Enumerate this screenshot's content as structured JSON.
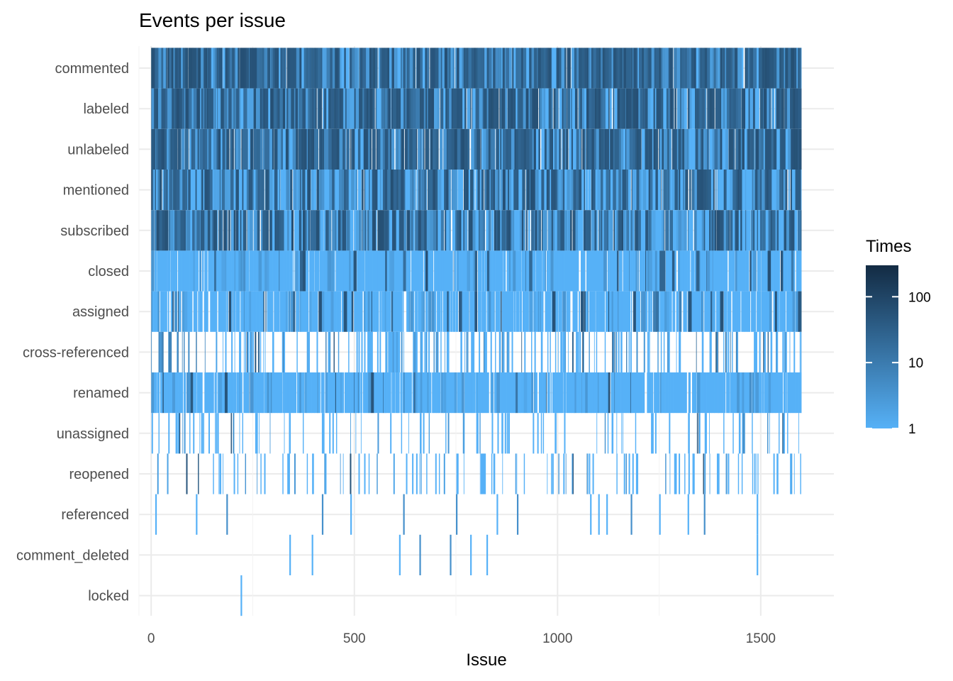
{
  "chart_data": {
    "type": "heatmap",
    "title": "Events per issue",
    "xlabel": "Issue",
    "ylabel": "",
    "xlim": [
      -30,
      1680
    ],
    "x_ticks": [
      0,
      500,
      1000,
      1500
    ],
    "x_tick_labels": [
      "0",
      "500",
      "1000",
      "1500"
    ],
    "x_max_issue": 1600,
    "grid": true,
    "categories": [
      "commented",
      "labeled",
      "unlabeled",
      "mentioned",
      "subscribed",
      "closed",
      "assigned",
      "cross-referenced",
      "renamed",
      "unassigned",
      "reopened",
      "referenced",
      "comment_deleted",
      "locked"
    ],
    "category_density": [
      0.95,
      0.92,
      0.9,
      0.9,
      0.88,
      0.85,
      0.7,
      0.4,
      0.8,
      0.2,
      0.2,
      0.025,
      0.008,
      0.001
    ],
    "category_dark_prob": [
      0.8,
      0.75,
      0.7,
      0.55,
      0.55,
      0.08,
      0.08,
      0.1,
      0.05,
      0.03,
      0.05,
      0.3,
      0.2,
      0
    ],
    "sparse_events": {
      "referenced": [
        10,
        110,
        185,
        420,
        490,
        620,
        750,
        850,
        900,
        1080,
        1100,
        1120,
        1180,
        1250,
        1320,
        1360,
        1490
      ],
      "comment_deleted": [
        340,
        395,
        610,
        660,
        735,
        785,
        825,
        1490
      ],
      "locked": [
        220
      ]
    },
    "legend": {
      "title": "Times",
      "labels": [
        "100",
        "10",
        "1"
      ],
      "values": [
        100,
        10,
        1
      ],
      "scale": "log",
      "range": [
        1,
        300
      ],
      "position": "right"
    },
    "colors": {
      "low": "#56B1F7",
      "high": "#132B43",
      "grid": "#ebebeb",
      "text": "#4d4d4d"
    }
  }
}
